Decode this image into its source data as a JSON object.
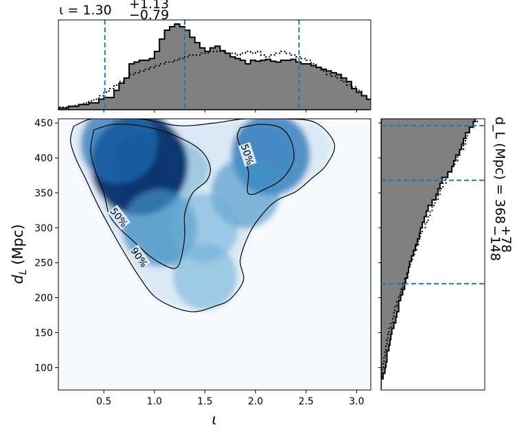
{
  "chart_data": [
    {
      "type": "heatmap",
      "panel": "joint",
      "xlabel": "ι",
      "ylabel": "d_L (Mpc)",
      "xlim": [
        0.05,
        3.14
      ],
      "ylim": [
        68,
        456
      ],
      "x_ticks": [
        0.5,
        1.0,
        1.5,
        2.0,
        2.5,
        3.0
      ],
      "x_tick_labels": [
        "0.5",
        "1.0",
        "1.5",
        "2.0",
        "2.5",
        "3.0"
      ],
      "y_ticks": [
        100,
        150,
        200,
        250,
        300,
        350,
        400,
        450
      ],
      "y_tick_labels": [
        "100",
        "150",
        "200",
        "250",
        "300",
        "350",
        "400",
        "450"
      ],
      "colormap": "Blues",
      "density_peaks": [
        {
          "x": 0.85,
          "y": 390,
          "weight": 1.0
        },
        {
          "x": 1.05,
          "y": 300,
          "weight": 0.45
        },
        {
          "x": 0.65,
          "y": 420,
          "weight": 0.5
        },
        {
          "x": 2.15,
          "y": 405,
          "weight": 0.55
        },
        {
          "x": 1.9,
          "y": 350,
          "weight": 0.3
        },
        {
          "x": 1.5,
          "y": 300,
          "weight": 0.25
        },
        {
          "x": 1.5,
          "y": 230,
          "weight": 0.18
        }
      ],
      "contours": [
        {
          "level": "90%",
          "points": [
            [
              0.2,
              445
            ],
            [
              0.35,
              455
            ],
            [
              0.55,
              458
            ],
            [
              0.9,
              455
            ],
            [
              1.25,
              446
            ],
            [
              1.6,
              450
            ],
            [
              1.9,
              456
            ],
            [
              2.3,
              456
            ],
            [
              2.6,
              450
            ],
            [
              2.78,
              420
            ],
            [
              2.7,
              390
            ],
            [
              2.55,
              370
            ],
            [
              2.4,
              352
            ],
            [
              2.22,
              340
            ],
            [
              2.1,
              325
            ],
            [
              1.95,
              295
            ],
            [
              1.85,
              255
            ],
            [
              1.88,
              225
            ],
            [
              1.75,
              198
            ],
            [
              1.6,
              188
            ],
            [
              1.4,
              180
            ],
            [
              1.2,
              186
            ],
            [
              1.0,
              202
            ],
            [
              0.85,
              230
            ],
            [
              0.72,
              260
            ],
            [
              0.6,
              290
            ],
            [
              0.45,
              330
            ],
            [
              0.32,
              370
            ],
            [
              0.22,
              400
            ],
            [
              0.17,
              425
            ],
            [
              0.2,
              445
            ]
          ]
        },
        {
          "level": "50%",
          "points": [
            [
              0.4,
              440
            ],
            [
              0.6,
              448
            ],
            [
              0.9,
              445
            ],
            [
              1.2,
              432
            ],
            [
              1.45,
              412
            ],
            [
              1.55,
              388
            ],
            [
              1.52,
              368
            ],
            [
              1.38,
              350
            ],
            [
              1.3,
              320
            ],
            [
              1.3,
              290
            ],
            [
              1.27,
              260
            ],
            [
              1.22,
              243
            ],
            [
              1.12,
              245
            ],
            [
              0.95,
              260
            ],
            [
              0.8,
              280
            ],
            [
              0.65,
              300
            ],
            [
              0.55,
              320
            ],
            [
              0.5,
              350
            ],
            [
              0.42,
              380
            ],
            [
              0.37,
              410
            ],
            [
              0.4,
              440
            ]
          ]
        },
        {
          "level": "50%",
          "points": [
            [
              1.85,
              443
            ],
            [
              2.05,
              448
            ],
            [
              2.25,
              443
            ],
            [
              2.35,
              425
            ],
            [
              2.38,
              400
            ],
            [
              2.32,
              380
            ],
            [
              2.22,
              365
            ],
            [
              2.1,
              356
            ],
            [
              1.98,
              348
            ],
            [
              1.92,
              352
            ],
            [
              1.93,
              380
            ],
            [
              1.87,
              408
            ],
            [
              1.82,
              430
            ],
            [
              1.85,
              443
            ]
          ]
        }
      ]
    },
    {
      "type": "step-histogram",
      "panel": "top-marginal",
      "title": "ι = 1.30",
      "title_sup": "+1.13",
      "title_sub": "−0.79",
      "x_range": [
        0.05,
        3.14
      ],
      "bin_width": 0.05,
      "posterior": [
        2,
        2,
        4,
        4,
        6,
        6,
        8,
        8,
        12,
        14,
        14,
        22,
        30,
        36,
        52,
        54,
        56,
        56,
        58,
        66,
        80,
        90,
        94,
        97,
        94,
        90,
        82,
        76,
        70,
        66,
        70,
        72,
        67,
        64,
        60,
        58,
        56,
        52,
        56,
        55,
        56,
        57,
        55,
        54,
        56,
        56,
        57,
        54,
        52,
        52,
        50,
        48,
        46,
        44,
        42,
        40,
        36,
        32,
        24,
        20,
        16,
        12,
        8,
        4
      ],
      "prior_dotted": [
        3,
        3,
        4,
        5,
        6,
        8,
        10,
        12,
        16,
        20,
        24,
        28,
        32,
        36,
        40,
        42,
        44,
        46,
        48,
        50,
        52,
        54,
        54,
        56,
        58,
        60,
        62,
        62,
        64,
        64,
        66,
        66,
        66,
        64,
        64,
        62,
        64,
        66,
        64,
        66,
        62,
        60,
        62,
        64,
        66,
        64,
        62,
        60,
        58,
        56,
        52,
        48,
        44,
        40,
        38,
        36,
        32,
        28,
        26,
        22,
        16,
        12,
        8,
        4
      ],
      "quantile_lines": [
        0.51,
        1.3,
        2.43
      ]
    },
    {
      "type": "step-histogram",
      "panel": "right-marginal",
      "orientation": "horizontal",
      "side_label": "d_L (Mpc) = 368",
      "side_label_sup": "+78",
      "side_label_sub": "−148",
      "y_range": [
        68,
        456
      ],
      "bin_height": 8,
      "posterior": [
        0,
        0,
        2,
        4,
        5,
        6,
        6,
        8,
        9,
        10,
        11,
        13,
        15,
        16,
        18,
        18,
        20,
        22,
        24,
        25,
        27,
        28,
        29,
        31,
        33,
        35,
        37,
        39,
        40,
        42,
        44,
        46,
        48,
        52,
        56,
        58,
        60,
        62,
        68,
        72,
        74,
        76,
        80,
        82,
        84,
        86,
        90,
        94,
        96,
        100
      ],
      "prior_dotted": [
        0,
        0,
        1,
        1,
        2,
        3,
        4,
        5,
        6,
        7,
        8,
        10,
        12,
        13,
        14,
        16,
        18,
        20,
        22,
        24,
        26,
        28,
        30,
        32,
        34,
        36,
        38,
        40,
        42,
        45,
        48,
        50,
        52,
        55,
        58,
        60,
        63,
        66,
        68,
        72,
        75,
        78,
        80,
        84,
        86,
        88,
        90,
        94,
        98,
        100
      ],
      "quantile_lines": [
        220,
        368,
        446
      ]
    }
  ]
}
